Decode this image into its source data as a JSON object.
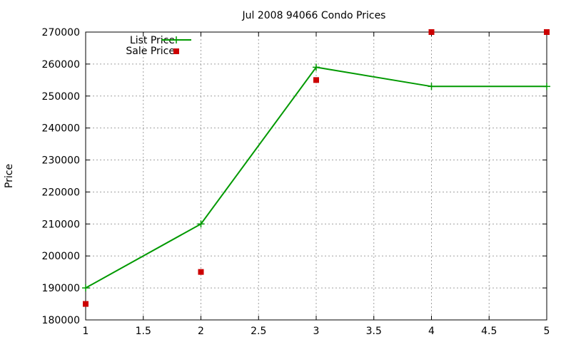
{
  "chart_data": {
    "type": "line",
    "title": "Jul 2008 94066 Condo Prices",
    "xlabel": "",
    "ylabel": "Price",
    "xlim": [
      1,
      5
    ],
    "ylim": [
      180000,
      270000
    ],
    "xticks": [
      1,
      1.5,
      2,
      2.5,
      3,
      3.5,
      4,
      4.5,
      5
    ],
    "xtick_labels": [
      "1",
      "1.5",
      "2",
      "2.5",
      "3",
      "3.5",
      "4",
      "4.5",
      "5"
    ],
    "yticks": [
      180000,
      190000,
      200000,
      210000,
      220000,
      230000,
      240000,
      250000,
      260000,
      270000
    ],
    "ytick_labels": [
      "180000",
      "190000",
      "200000",
      "210000",
      "220000",
      "230000",
      "240000",
      "250000",
      "260000",
      "270000"
    ],
    "grid": true,
    "legend_position": "top-left",
    "series": [
      {
        "name": "List Price",
        "style": "line-with-plus-markers",
        "color": "#009900",
        "x": [
          1,
          2,
          3,
          4,
          5
        ],
        "y": [
          190000,
          210000,
          259000,
          253000,
          253000
        ]
      },
      {
        "name": "Sale Price",
        "style": "square-points",
        "color": "#cc0000",
        "x": [
          1,
          2,
          3,
          4,
          5
        ],
        "y": [
          185000,
          195000,
          255000,
          270000,
          270000
        ]
      }
    ]
  }
}
